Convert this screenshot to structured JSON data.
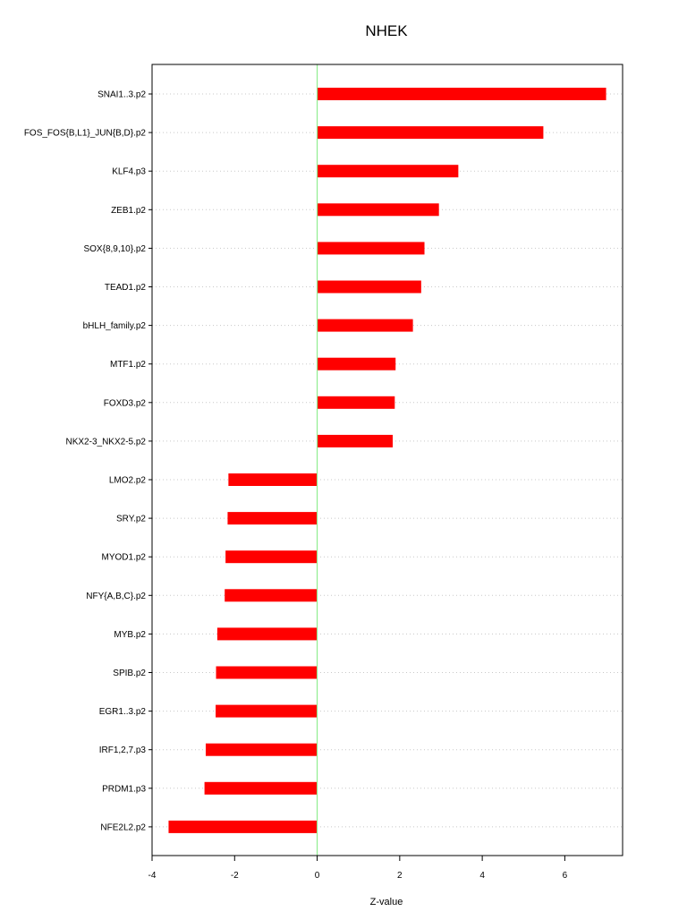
{
  "chart_data": {
    "type": "bar",
    "orientation": "horizontal",
    "title": "NHEK",
    "xlabel": "Z-value",
    "ylabel": "",
    "xlim": [
      -4,
      7.4
    ],
    "x_ticks": [
      -4,
      -2,
      0,
      2,
      4,
      6
    ],
    "x_tick_labels": [
      "-4",
      "-2",
      "0",
      "2",
      "4",
      "6"
    ],
    "grid": "horizontal dotted lines at each category",
    "reference_line": 0,
    "categories": [
      "SNAI1..3.p2",
      "FOS_FOS{B,L1}_JUN{B,D}.p2",
      "KLF4.p3",
      "ZEB1.p2",
      "SOX{8,9,10}.p2",
      "TEAD1.p2",
      "bHLH_family.p2",
      "MTF1.p2",
      "FOXD3.p2",
      "NKX2-3_NKX2-5.p2",
      "LMO2.p2",
      "SRY.p2",
      "MYOD1.p2",
      "NFY{A,B,C}.p2",
      "MYB.p2",
      "SPIB.p2",
      "EGR1..3.p2",
      "IRF1,2,7.p3",
      "PRDM1.p3",
      "NFE2L2.p2"
    ],
    "values": [
      7.0,
      5.48,
      3.42,
      2.95,
      2.6,
      2.52,
      2.32,
      1.9,
      1.88,
      1.83,
      -2.15,
      -2.17,
      -2.22,
      -2.24,
      -2.42,
      -2.45,
      -2.46,
      -2.7,
      -2.73,
      -3.6
    ]
  },
  "colors": {
    "bar": "#ff0000",
    "zero_line": "#90ee90",
    "grid": "#c8c8c8",
    "frame": "#000000",
    "background": "#ffffff"
  }
}
